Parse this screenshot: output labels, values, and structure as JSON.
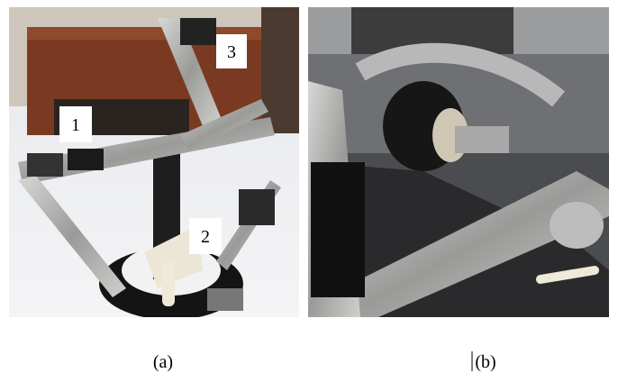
{
  "panels": [
    {
      "label": "(a)",
      "callouts": [
        "1",
        "3",
        "2"
      ]
    },
    {
      "label": "(b)"
    }
  ]
}
